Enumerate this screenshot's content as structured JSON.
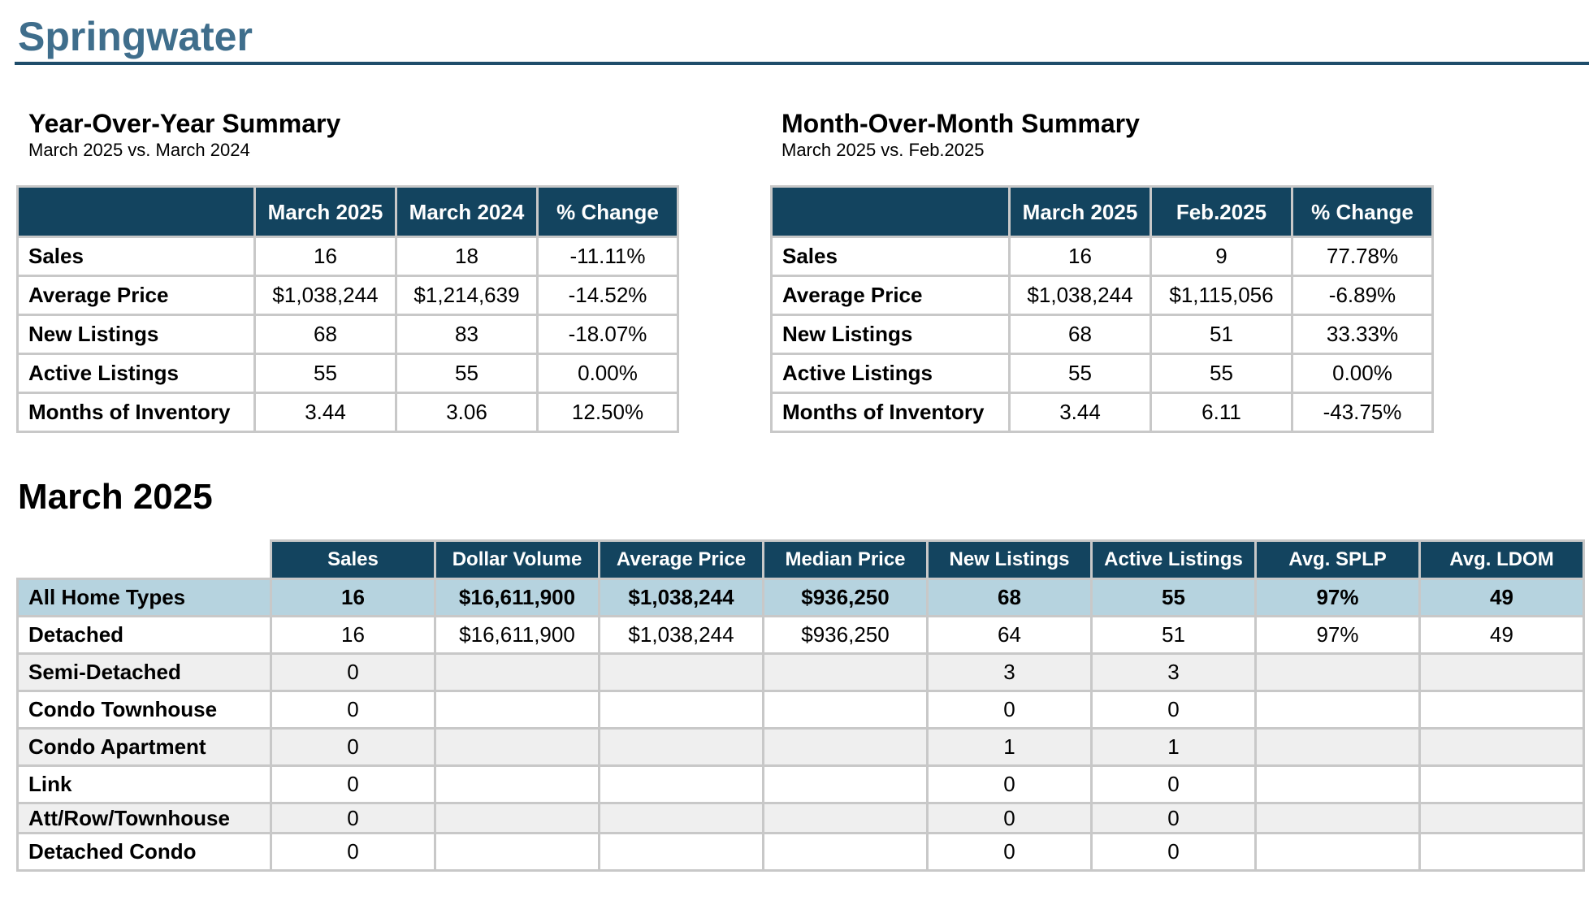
{
  "page_title": "Springwater",
  "yoy": {
    "heading": "Year-Over-Year Summary",
    "subheading": "March 2025 vs. March 2024",
    "columns": [
      "March 2025",
      "March 2024",
      "% Change"
    ],
    "rows": [
      {
        "label": "Sales",
        "v": [
          "16",
          "18",
          "-11.11%"
        ]
      },
      {
        "label": "Average Price",
        "v": [
          "$1,038,244",
          "$1,214,639",
          "-14.52%"
        ]
      },
      {
        "label": "New Listings",
        "v": [
          "68",
          "83",
          "-18.07%"
        ]
      },
      {
        "label": "Active Listings",
        "v": [
          "55",
          "55",
          "0.00%"
        ]
      },
      {
        "label": "Months of Inventory",
        "v": [
          "3.44",
          "3.06",
          "12.50%"
        ]
      }
    ]
  },
  "mom": {
    "heading": "Month-Over-Month Summary",
    "subheading": "March 2025 vs. Feb.2025",
    "columns": [
      "March 2025",
      "Feb.2025",
      "% Change"
    ],
    "rows": [
      {
        "label": "Sales",
        "v": [
          "16",
          "9",
          "77.78%"
        ]
      },
      {
        "label": "Average Price",
        "v": [
          "$1,038,244",
          "$1,115,056",
          "-6.89%"
        ]
      },
      {
        "label": "New Listings",
        "v": [
          "68",
          "51",
          "33.33%"
        ]
      },
      {
        "label": "Active Listings",
        "v": [
          "55",
          "55",
          "0.00%"
        ]
      },
      {
        "label": "Months of Inventory",
        "v": [
          "3.44",
          "6.11",
          "-43.75%"
        ]
      }
    ]
  },
  "detail": {
    "heading": "March 2025",
    "columns": [
      "Sales",
      "Dollar Volume",
      "Average Price",
      "Median Price",
      "New Listings",
      "Active Listings",
      "Avg. SPLP",
      "Avg. LDOM"
    ],
    "rows": [
      {
        "label": "All Home Types",
        "v": [
          "16",
          "$16,611,900",
          "$1,038,244",
          "$936,250",
          "68",
          "55",
          "97%",
          "49"
        ]
      },
      {
        "label": "Detached",
        "v": [
          "16",
          "$16,611,900",
          "$1,038,244",
          "$936,250",
          "64",
          "51",
          "97%",
          "49"
        ]
      },
      {
        "label": "Semi-Detached",
        "v": [
          "0",
          "",
          "",
          "",
          "3",
          "3",
          "",
          ""
        ]
      },
      {
        "label": "Condo Townhouse",
        "v": [
          "0",
          "",
          "",
          "",
          "0",
          "0",
          "",
          ""
        ]
      },
      {
        "label": "Condo Apartment",
        "v": [
          "0",
          "",
          "",
          "",
          "1",
          "1",
          "",
          ""
        ]
      },
      {
        "label": "Link",
        "v": [
          "0",
          "",
          "",
          "",
          "0",
          "0",
          "",
          ""
        ]
      },
      {
        "label": "Att/Row/Townhouse",
        "v": [
          "0",
          "",
          "",
          "",
          "0",
          "0",
          "",
          ""
        ]
      },
      {
        "label": "Detached Condo",
        "v": [
          "0",
          "",
          "",
          "",
          "0",
          "0",
          "",
          ""
        ]
      }
    ]
  }
}
